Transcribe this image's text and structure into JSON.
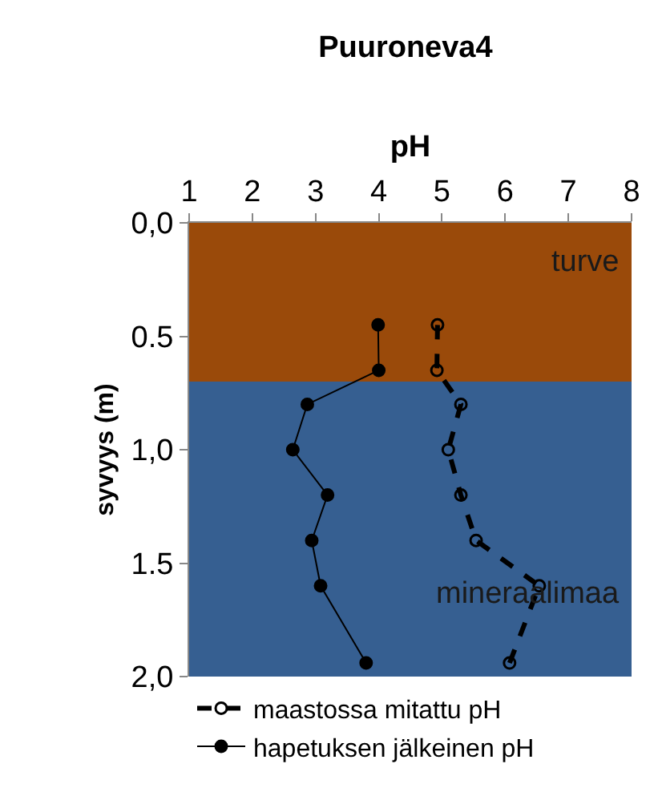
{
  "chart_data": {
    "type": "line",
    "title": "Puuroneva4",
    "xlabel": "pH",
    "ylabel": "syvyys (m)",
    "xlim": [
      1,
      8
    ],
    "xticks": [
      1,
      2,
      3,
      4,
      5,
      6,
      7,
      8
    ],
    "ylim": [
      2.0,
      0.0
    ],
    "yticks": [
      {
        "value": 0.0,
        "label": "0,0"
      },
      {
        "value": 0.5,
        "label": "0.5"
      },
      {
        "value": 1.0,
        "label": "1,0"
      },
      {
        "value": 1.5,
        "label": "1.5"
      },
      {
        "value": 2.0,
        "label": "2,0"
      }
    ],
    "bands": [
      {
        "axis": "y",
        "from": 0.0,
        "to": 0.7,
        "label": "turve",
        "color": "#9a4a0a"
      },
      {
        "axis": "y",
        "from": 0.7,
        "to": 2.0,
        "label": "mineraalimaa",
        "color": "#365f91"
      }
    ],
    "series": [
      {
        "name": "maastossa mitattu pH",
        "color": "#000000",
        "marker": "circle-open",
        "line_style": "dashed",
        "x": [
          4.93,
          4.92,
          5.3,
          5.1,
          5.3,
          5.54,
          6.54,
          6.07
        ],
        "values": [
          0.45,
          0.65,
          0.8,
          1.0,
          1.2,
          1.4,
          1.6,
          1.94
        ]
      },
      {
        "name": "hapetuksen jälkeinen pH",
        "color": "#000000",
        "marker": "circle",
        "line_style": "solid",
        "x": [
          3.99,
          4.0,
          2.87,
          2.64,
          3.19,
          2.94,
          3.08,
          3.8
        ],
        "values": [
          0.45,
          0.65,
          0.8,
          1.0,
          1.2,
          1.4,
          1.6,
          1.94
        ]
      }
    ],
    "grid": false,
    "legend": "bottom"
  }
}
